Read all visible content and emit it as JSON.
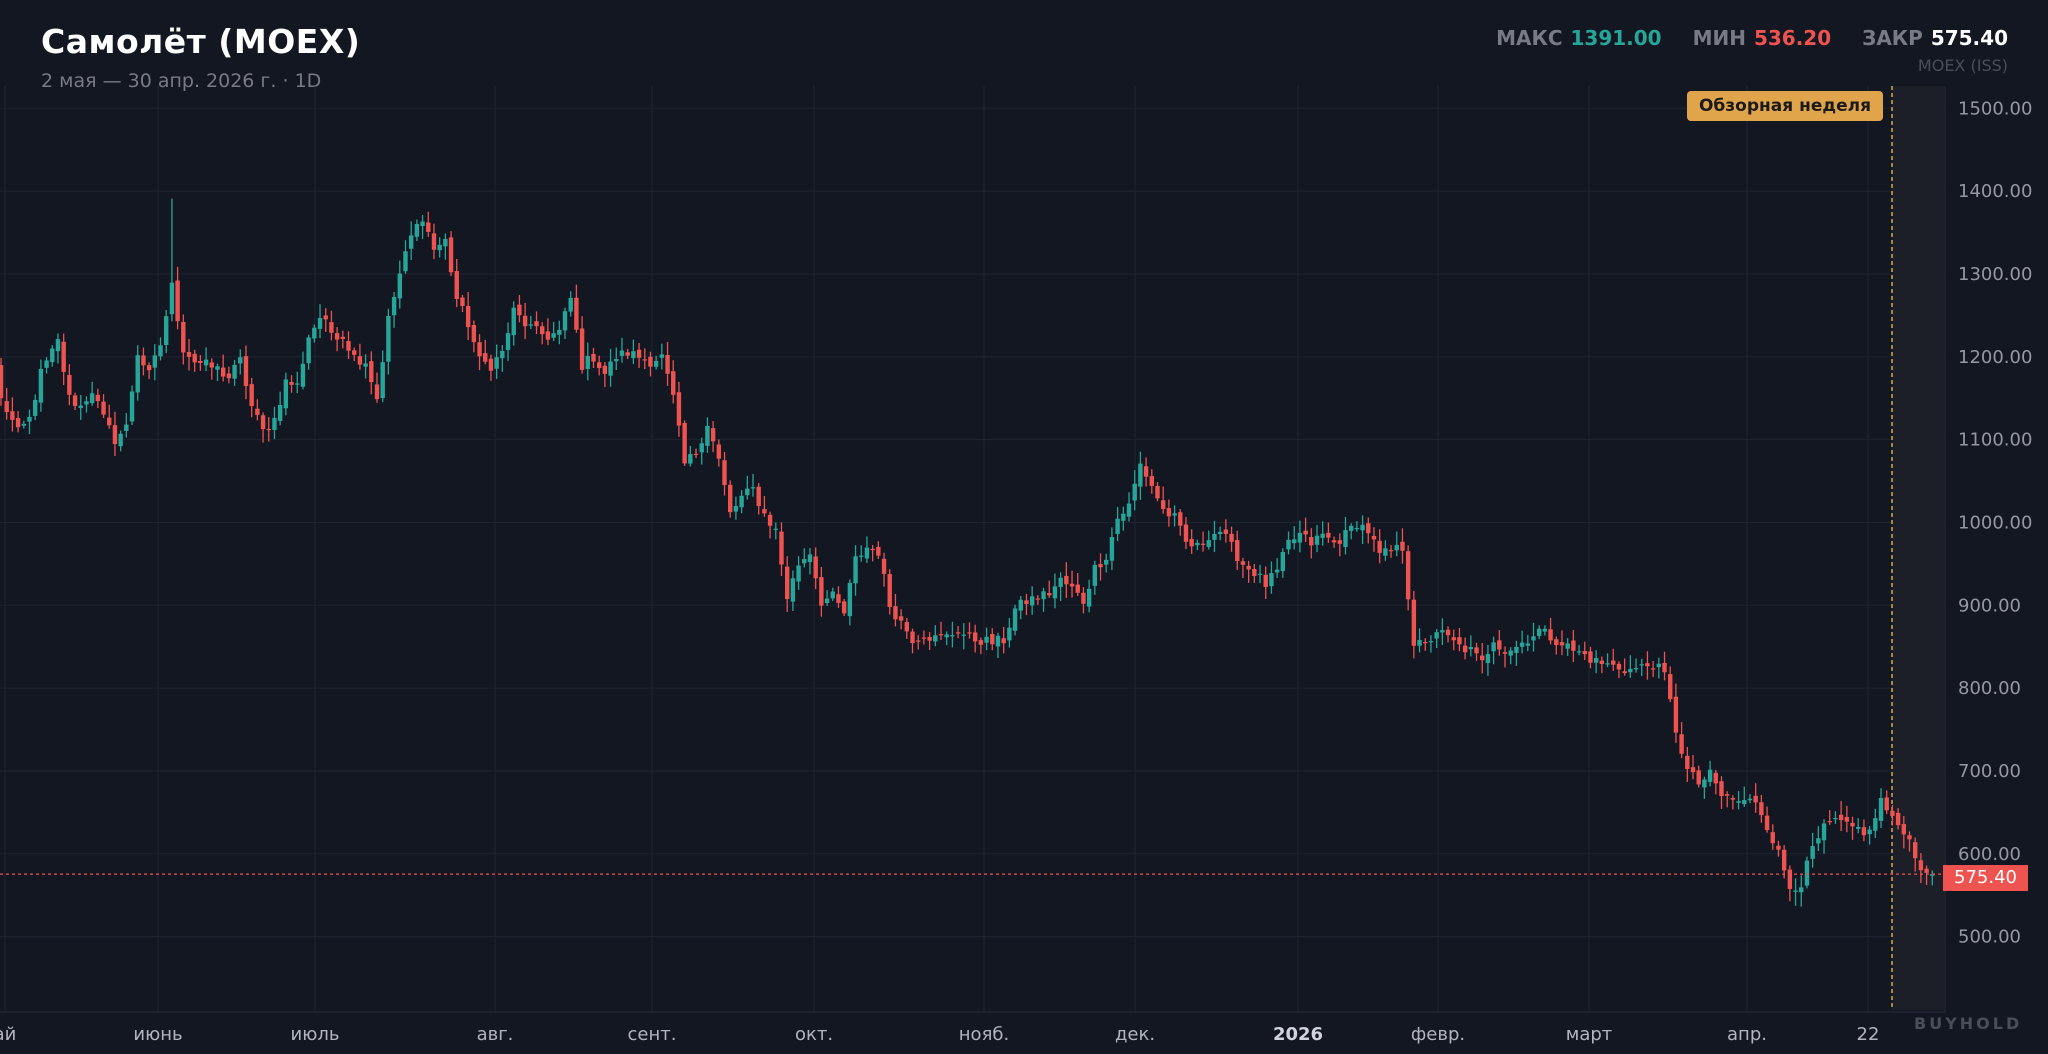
{
  "header": {
    "title": "Самолёт (MOEX)",
    "subtitle": "2 мая — 30 апр. 2026 г. · 1D",
    "stats": {
      "max_label": "МАКС",
      "max_value": "1391.00",
      "min_label": "МИН",
      "min_value": "536.20",
      "close_label": "ЗАКР",
      "close_value": "575.40"
    },
    "source": "MOEX (ISS)"
  },
  "highlight_label": "Обзорная неделя",
  "last_price_label": "575.40",
  "watermark": "BUYHOLD",
  "colors": {
    "background": "#131722",
    "up": "#26a69a",
    "down": "#ef5350",
    "highlight": "#e0a54a",
    "grid": "#1f2431"
  },
  "chart_data": {
    "type": "candlestick",
    "title": "Самолёт (MOEX)",
    "period": "2 мая — 30 апр. 2026 г.",
    "interval": "1D",
    "ylim": [
      450,
      1520
    ],
    "y_ticks": [
      "500.00",
      "600.00",
      "700.00",
      "800.00",
      "900.00",
      "1000.00",
      "1100.00",
      "1200.00",
      "1300.00",
      "1400.00",
      "1500.00"
    ],
    "x_tick_labels": [
      "ай",
      "июнь",
      "июль",
      "авг.",
      "сент.",
      "окт.",
      "нояб.",
      "дек.",
      "2026",
      "февр.",
      "март",
      "апр.",
      "22"
    ],
    "last_close": 575.4,
    "max": 1391.0,
    "min": 536.2,
    "highlighted_period": "Обзорная неделя",
    "close_anchors": [
      [
        0,
        1150
      ],
      [
        3,
        1108
      ],
      [
        5,
        1125
      ],
      [
        7,
        1180
      ],
      [
        10,
        1218
      ],
      [
        12,
        1150
      ],
      [
        14,
        1140
      ],
      [
        16,
        1160
      ],
      [
        18,
        1125
      ],
      [
        20,
        1100
      ],
      [
        22,
        1115
      ],
      [
        24,
        1205
      ],
      [
        26,
        1178
      ],
      [
        28,
        1215
      ],
      [
        30,
        1285
      ],
      [
        32,
        1210
      ],
      [
        34,
        1195
      ],
      [
        36,
        1190
      ],
      [
        38,
        1185
      ],
      [
        40,
        1175
      ],
      [
        42,
        1195
      ],
      [
        44,
        1140
      ],
      [
        46,
        1110
      ],
      [
        48,
        1125
      ],
      [
        50,
        1170
      ],
      [
        52,
        1165
      ],
      [
        54,
        1225
      ],
      [
        56,
        1248
      ],
      [
        58,
        1230
      ],
      [
        60,
        1225
      ],
      [
        62,
        1200
      ],
      [
        64,
        1195
      ],
      [
        66,
        1150
      ],
      [
        68,
        1245
      ],
      [
        70,
        1300
      ],
      [
        72,
        1345
      ],
      [
        74,
        1370
      ],
      [
        76,
        1330
      ],
      [
        78,
        1340
      ],
      [
        80,
        1270
      ],
      [
        82,
        1240
      ],
      [
        84,
        1195
      ],
      [
        86,
        1190
      ],
      [
        88,
        1205
      ],
      [
        90,
        1255
      ],
      [
        92,
        1240
      ],
      [
        94,
        1230
      ],
      [
        96,
        1225
      ],
      [
        98,
        1230
      ],
      [
        100,
        1270
      ],
      [
        102,
        1190
      ],
      [
        104,
        1200
      ],
      [
        106,
        1180
      ],
      [
        108,
        1200
      ],
      [
        110,
        1205
      ],
      [
        112,
        1200
      ],
      [
        114,
        1195
      ],
      [
        116,
        1200
      ],
      [
        118,
        1150
      ],
      [
        120,
        1070
      ],
      [
        122,
        1085
      ],
      [
        124,
        1120
      ],
      [
        126,
        1075
      ],
      [
        128,
        1010
      ],
      [
        130,
        1030
      ],
      [
        132,
        1040
      ],
      [
        134,
        1010
      ],
      [
        136,
        990
      ],
      [
        138,
        910
      ],
      [
        140,
        950
      ],
      [
        142,
        965
      ],
      [
        144,
        905
      ],
      [
        146,
        910
      ],
      [
        148,
        890
      ],
      [
        150,
        955
      ],
      [
        152,
        970
      ],
      [
        154,
        965
      ],
      [
        156,
        900
      ],
      [
        158,
        880
      ],
      [
        160,
        860
      ],
      [
        162,
        865
      ],
      [
        164,
        860
      ],
      [
        166,
        862
      ],
      [
        168,
        870
      ],
      [
        170,
        860
      ],
      [
        172,
        858
      ],
      [
        174,
        855
      ],
      [
        176,
        858
      ],
      [
        178,
        895
      ],
      [
        180,
        905
      ],
      [
        182,
        910
      ],
      [
        184,
        915
      ],
      [
        186,
        930
      ],
      [
        188,
        920
      ],
      [
        190,
        905
      ],
      [
        192,
        945
      ],
      [
        194,
        960
      ],
      [
        196,
        1005
      ],
      [
        198,
        1020
      ],
      [
        200,
        1070
      ],
      [
        202,
        1045
      ],
      [
        204,
        1015
      ],
      [
        206,
        1005
      ],
      [
        208,
        975
      ],
      [
        210,
        970
      ],
      [
        212,
        985
      ],
      [
        214,
        990
      ],
      [
        216,
        970
      ],
      [
        218,
        950
      ],
      [
        220,
        940
      ],
      [
        222,
        925
      ],
      [
        224,
        940
      ],
      [
        226,
        975
      ],
      [
        228,
        985
      ],
      [
        230,
        975
      ],
      [
        232,
        985
      ],
      [
        234,
        975
      ],
      [
        236,
        985
      ],
      [
        238,
        1000
      ],
      [
        240,
        990
      ],
      [
        242,
        960
      ],
      [
        244,
        965
      ],
      [
        246,
        970
      ],
      [
        248,
        855
      ],
      [
        250,
        850
      ],
      [
        252,
        870
      ],
      [
        254,
        860
      ],
      [
        256,
        850
      ],
      [
        258,
        845
      ],
      [
        260,
        830
      ],
      [
        262,
        860
      ],
      [
        264,
        845
      ],
      [
        266,
        850
      ],
      [
        268,
        860
      ],
      [
        270,
        870
      ],
      [
        272,
        862
      ],
      [
        274,
        855
      ],
      [
        276,
        845
      ],
      [
        278,
        840
      ],
      [
        280,
        832
      ],
      [
        282,
        828
      ],
      [
        284,
        825
      ],
      [
        286,
        822
      ],
      [
        288,
        825
      ],
      [
        290,
        830
      ],
      [
        292,
        815
      ],
      [
        294,
        750
      ],
      [
        296,
        700
      ],
      [
        298,
        685
      ],
      [
        300,
        695
      ],
      [
        302,
        670
      ],
      [
        304,
        665
      ],
      [
        306,
        662
      ],
      [
        308,
        665
      ],
      [
        310,
        635
      ],
      [
        312,
        600
      ],
      [
        314,
        560
      ],
      [
        316,
        565
      ],
      [
        318,
        605
      ],
      [
        320,
        630
      ],
      [
        322,
        640
      ],
      [
        324,
        632
      ],
      [
        326,
        630
      ],
      [
        328,
        625
      ],
      [
        330,
        665
      ],
      [
        332,
        640
      ],
      [
        334,
        630
      ],
      [
        336,
        600
      ],
      [
        338,
        570
      ],
      [
        339,
        575.4
      ]
    ]
  }
}
